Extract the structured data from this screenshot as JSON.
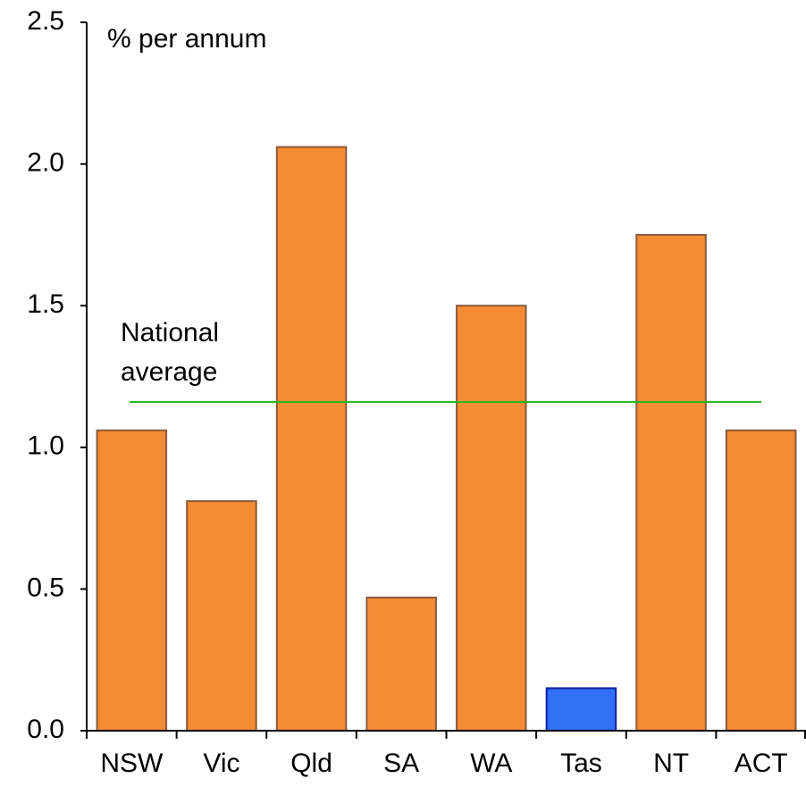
{
  "chart_data": {
    "type": "bar",
    "y_label": "% per annum",
    "categories": [
      "NSW",
      "Vic",
      "Qld",
      "SA",
      "WA",
      "Tas",
      "NT",
      "ACT"
    ],
    "values": [
      1.06,
      0.81,
      2.06,
      0.47,
      1.5,
      0.15,
      1.75,
      1.06
    ],
    "colors": [
      "#f58b35",
      "#f58b35",
      "#f58b35",
      "#f58b35",
      "#f58b35",
      "#3070f5",
      "#f58b35",
      "#f58b35"
    ],
    "ylim": [
      0,
      2.5
    ],
    "yticks": [
      {
        "value": 0,
        "label": "0.0"
      },
      0.5,
      {
        "value": 1,
        "label": "1.0"
      },
      1.5,
      {
        "value": 2,
        "label": "2.0"
      },
      2.5
    ],
    "reference_line": {
      "value": 1.16,
      "color": "#22bb22",
      "label": [
        "National",
        "average"
      ]
    }
  }
}
